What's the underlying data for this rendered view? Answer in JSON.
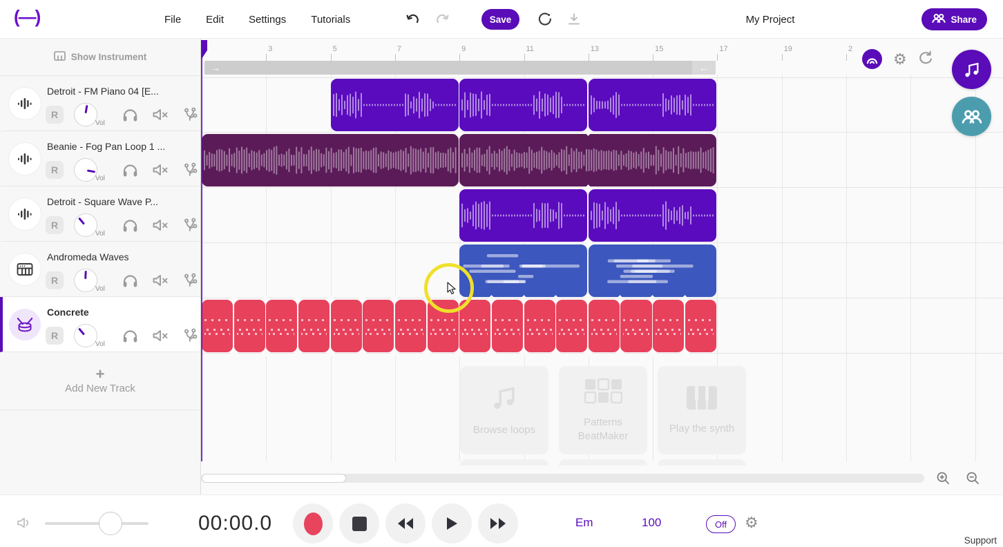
{
  "header": {
    "logo": "(—)",
    "menus": [
      "File",
      "Edit",
      "Settings",
      "Tutorials"
    ],
    "save_label": "Save",
    "project_title": "My Project",
    "share_label": "Share"
  },
  "sidebar": {
    "show_instrument_label": "Show Instrument",
    "record_label": "R",
    "vol_label": "Vol",
    "add_track_label": "Add New Track",
    "tracks": [
      {
        "name": "Detroit - FM Piano 04 [E...",
        "type": "audio",
        "knob_angle": 10,
        "selected": false
      },
      {
        "name": "Beanie - Fog Pan Loop 1 ...",
        "type": "audio",
        "knob_angle": 100,
        "selected": false
      },
      {
        "name": "Detroit - Square Wave P...",
        "type": "audio",
        "knob_angle": -40,
        "selected": false
      },
      {
        "name": "Andromeda Waves",
        "type": "synth",
        "knob_angle": 3,
        "selected": false
      },
      {
        "name": "Concrete",
        "type": "drums",
        "knob_angle": -40,
        "selected": true
      }
    ]
  },
  "timeline": {
    "ruler_numbers": [
      "3",
      "5",
      "7",
      "9",
      "11",
      "13",
      "15",
      "17",
      "19",
      "2"
    ],
    "clips": [
      {
        "track": 0,
        "color": "purple",
        "style": "wave_sparse",
        "segments": [
          [
            5,
            9
          ],
          [
            9,
            13
          ],
          [
            13,
            17
          ]
        ]
      },
      {
        "track": 1,
        "color": "plum",
        "style": "wave_dense",
        "segments": [
          [
            1,
            9
          ],
          [
            9,
            17
          ]
        ]
      },
      {
        "track": 2,
        "color": "purple",
        "style": "wave_sparse",
        "segments": [
          [
            9,
            13
          ],
          [
            13,
            17
          ]
        ]
      },
      {
        "track": 3,
        "color": "blue",
        "style": "midi",
        "segments": [
          [
            9,
            13
          ],
          [
            13,
            17
          ]
        ]
      },
      {
        "track": 4,
        "color": "red",
        "style": "drums",
        "segments": [
          [
            1,
            2
          ],
          [
            2,
            3
          ],
          [
            3,
            4
          ],
          [
            4,
            5
          ],
          [
            5,
            6
          ],
          [
            6,
            7
          ],
          [
            7,
            8
          ],
          [
            8,
            9
          ],
          [
            9,
            10
          ],
          [
            10,
            11
          ],
          [
            11,
            12
          ],
          [
            12,
            13
          ],
          [
            13,
            14
          ],
          [
            14,
            15
          ],
          [
            15,
            16
          ],
          [
            16,
            17
          ]
        ]
      }
    ]
  },
  "placeholders": [
    {
      "label": "Browse loops",
      "icon": "music-note"
    },
    {
      "label": "Patterns BeatMaker",
      "icon": "pattern-grid"
    },
    {
      "label": "Play the synth",
      "icon": "piano-keys"
    }
  ],
  "transport": {
    "time": "00:00.0",
    "key": "Em",
    "tempo": "100",
    "metronome_state": "Off",
    "support_label": "Support"
  },
  "colors": {
    "purple": "#5a0cb8",
    "teal": "#4b9dae",
    "highlight_yellow": "#f0e02a",
    "record_red": "#e8445e",
    "clip_colors": {
      "purple": "#5a0bbe",
      "plum": "#5b1b58",
      "blue": "#3c57bd",
      "red": "#e8415c"
    }
  }
}
